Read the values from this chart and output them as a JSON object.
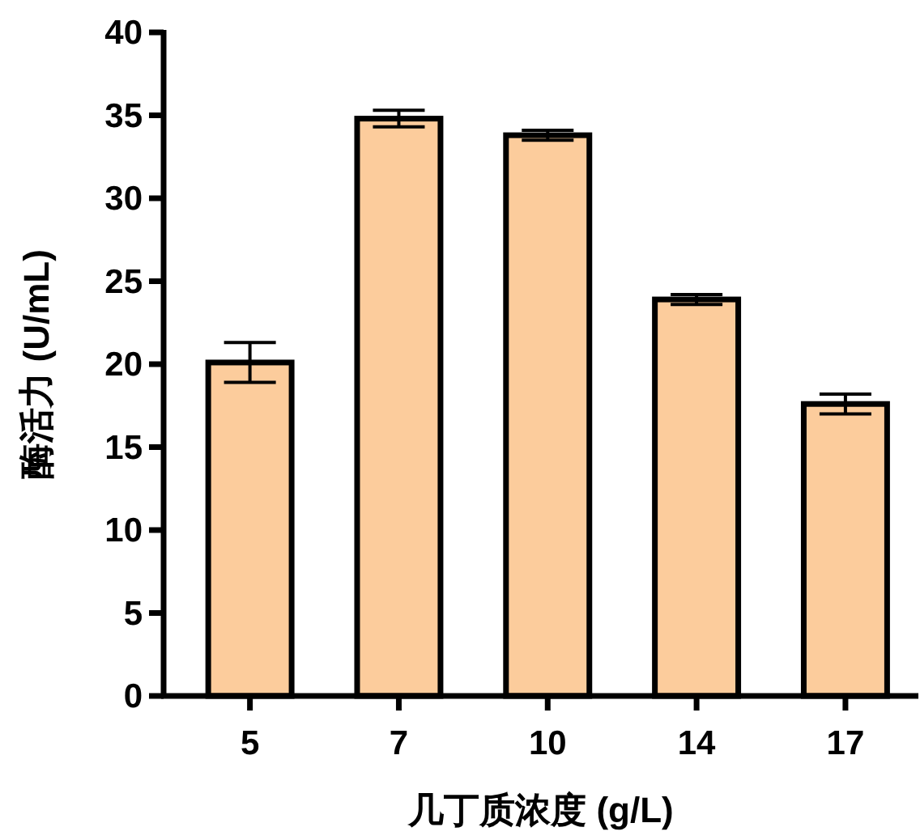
{
  "chart_data": {
    "type": "bar",
    "xlabel": "几丁质浓度 (g/L)",
    "ylabel": "酶活力 (U/mL)",
    "categories": [
      "5",
      "7",
      "10",
      "14",
      "17"
    ],
    "values": [
      20.1,
      34.8,
      33.8,
      23.9,
      17.6
    ],
    "errors": [
      1.2,
      0.5,
      0.3,
      0.3,
      0.6
    ],
    "color": "#fccc9c",
    "ylim": [
      0,
      40
    ],
    "yticks": [
      0,
      5,
      10,
      15,
      20,
      25,
      30,
      35,
      40
    ],
    "grid": false
  }
}
